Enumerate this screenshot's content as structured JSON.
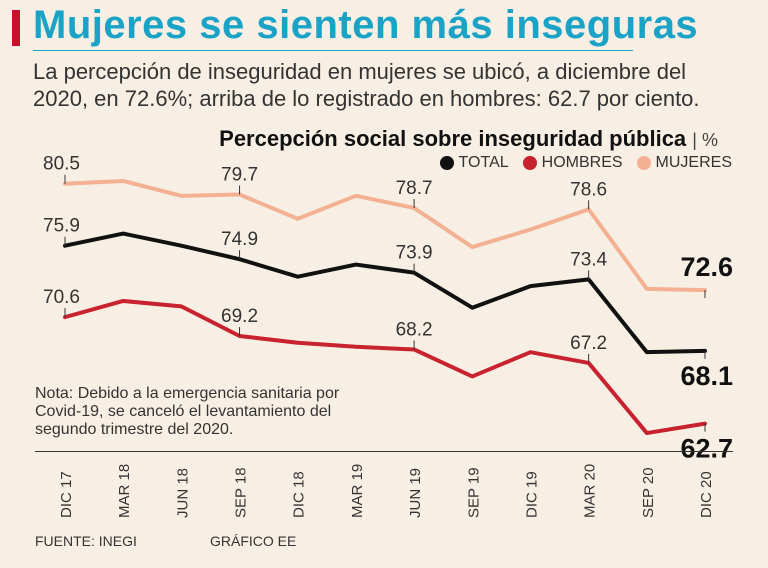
{
  "header": {
    "title": "Mujeres se sienten más inseguras",
    "subtitle": "La percepción de inseguridad en mujeres se ubicó, a diciembre del 2020, en 72.6%; arriba de lo registrado en hombres: 62.7 por ciento."
  },
  "note": "Nota: Debido a la emergencia sanitaria por Covid-19, se canceló el levantamiento del segundo trimestre del 2020.",
  "footer": {
    "source": "FUENTE: INEGI",
    "credit": "GRÁFICO EE"
  },
  "colors": {
    "total": "#111111",
    "hombres": "#c8222f",
    "mujeres": "#f4b092",
    "title": "#1aa3c7"
  },
  "chart_data": {
    "type": "line",
    "title": "Percepción social sobre inseguridad pública",
    "unit": "%",
    "categories": [
      "DIC 17",
      "MAR 18",
      "JUN 18",
      "SEP 18",
      "DIC 18",
      "MAR 19",
      "JUN 19",
      "SEP 19",
      "DIC 19",
      "MAR 20",
      "SEP 20",
      "DIC 20"
    ],
    "series": [
      {
        "name": "TOTAL",
        "key": "total",
        "values": [
          75.9,
          76.8,
          75.9,
          74.9,
          73.6,
          74.5,
          73.9,
          71.3,
          72.9,
          73.4,
          68.0,
          68.1
        ],
        "labels": [
          "75.9",
          "",
          "",
          "74.9",
          "",
          "",
          "73.9",
          "",
          "",
          "73.4",
          "",
          "68.1"
        ]
      },
      {
        "name": "HOMBRES",
        "key": "hombres",
        "values": [
          70.6,
          71.8,
          71.4,
          69.2,
          68.7,
          68.4,
          68.2,
          66.2,
          68.0,
          67.2,
          62.0,
          62.7
        ],
        "labels": [
          "70.6",
          "",
          "",
          "69.2",
          "",
          "",
          "68.2",
          "",
          "",
          "67.2",
          "",
          "62.7"
        ]
      },
      {
        "name": "MUJERES",
        "key": "mujeres",
        "values": [
          80.5,
          80.7,
          79.6,
          79.7,
          77.9,
          79.6,
          78.7,
          75.8,
          77.1,
          78.6,
          72.7,
          72.6
        ],
        "labels": [
          "80.5",
          "",
          "",
          "79.7",
          "",
          "",
          "78.7",
          "",
          "",
          "78.6",
          "",
          "72.6"
        ]
      }
    ],
    "ylim": [
      60,
      83
    ]
  }
}
